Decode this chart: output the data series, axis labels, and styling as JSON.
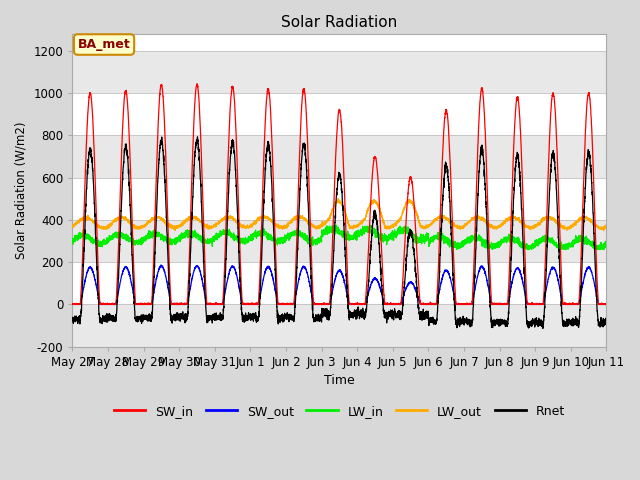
{
  "title": "Solar Radiation",
  "ylabel": "Solar Radiation (W/m2)",
  "xlabel": "Time",
  "ylim": [
    -200,
    1280
  ],
  "yticks": [
    -200,
    0,
    200,
    400,
    600,
    800,
    1000,
    1200
  ],
  "annotation": "BA_met",
  "legend_entries": [
    "SW_in",
    "SW_out",
    "LW_in",
    "LW_out",
    "Rnet"
  ],
  "line_colors": {
    "SW_in": "#ff0000",
    "SW_out": "#0000ff",
    "LW_in": "#00ee00",
    "LW_out": "#ffaa00",
    "Rnet": "#000000"
  },
  "xtick_labels": [
    "May 27",
    "May 28",
    "May 29",
    "May 30",
    "May 31",
    "Jun 1",
    "Jun 2",
    "Jun 3",
    "Jun 4",
    "Jun 5",
    "Jun 6",
    "Jun 7",
    "Jun 8",
    "Jun 9",
    "Jun 10",
    "Jun 11"
  ],
  "n_days": 15,
  "background_color": "#d8d8d8",
  "plot_bg_color": "#ffffff",
  "band_color": "#e8e8e8",
  "grid_color": "#c0c0c0"
}
